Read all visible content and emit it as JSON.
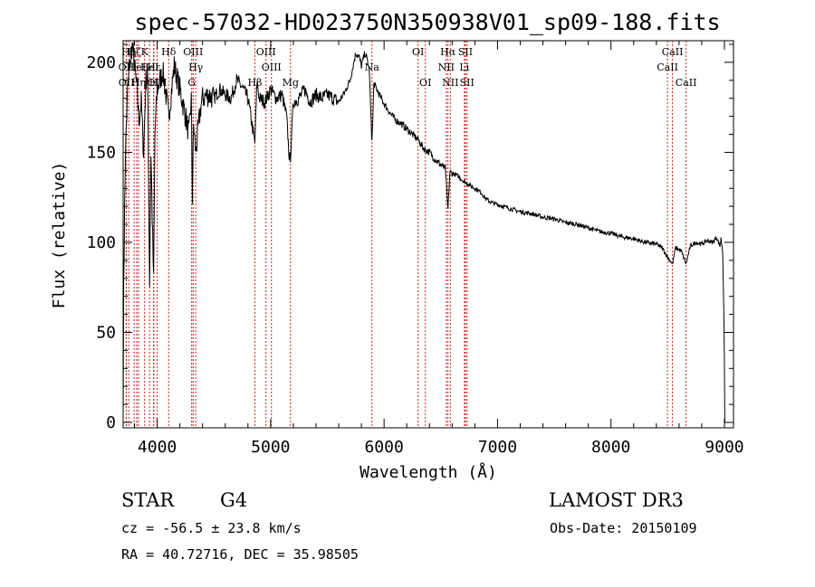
{
  "chart_data": {
    "type": "line",
    "title": "spec-57032-HD023750N350938V01_sp09-188.fits",
    "xlabel": "Wavelength (Å)",
    "ylabel": "Flux (relative)",
    "xlim": [
      3700,
      9080
    ],
    "ylim": [
      -3,
      212
    ],
    "xticks": [
      4000,
      5000,
      6000,
      7000,
      8000,
      9000
    ],
    "yticks": [
      0,
      50,
      100,
      150,
      200
    ],
    "spectrum_anchors": [
      [
        3700,
        0
      ],
      [
        3705,
        80
      ],
      [
        3720,
        150
      ],
      [
        3740,
        185
      ],
      [
        3760,
        200
      ],
      [
        3780,
        210
      ],
      [
        3800,
        198
      ],
      [
        3820,
        186
      ],
      [
        3840,
        168
      ],
      [
        3860,
        178
      ],
      [
        3880,
        150
      ],
      [
        3900,
        190
      ],
      [
        3915,
        195
      ],
      [
        3933,
        78
      ],
      [
        3945,
        150
      ],
      [
        3968,
        78
      ],
      [
        3980,
        160
      ],
      [
        4000,
        185
      ],
      [
        4050,
        195
      ],
      [
        4101,
        170
      ],
      [
        4150,
        198
      ],
      [
        4200,
        185
      ],
      [
        4250,
        170
      ],
      [
        4280,
        160
      ],
      [
        4300,
        180
      ],
      [
        4310,
        125
      ],
      [
        4320,
        165
      ],
      [
        4340,
        150
      ],
      [
        4383,
        175
      ],
      [
        4400,
        180
      ],
      [
        4450,
        182
      ],
      [
        4500,
        180
      ],
      [
        4550,
        185
      ],
      [
        4600,
        182
      ],
      [
        4650,
        180
      ],
      [
        4700,
        190
      ],
      [
        4750,
        186
      ],
      [
        4800,
        180
      ],
      [
        4861,
        155
      ],
      [
        4880,
        190
      ],
      [
        4900,
        180
      ],
      [
        4950,
        178
      ],
      [
        5000,
        185
      ],
      [
        5050,
        180
      ],
      [
        5100,
        182
      ],
      [
        5140,
        170
      ],
      [
        5167,
        145
      ],
      [
        5175,
        148
      ],
      [
        5200,
        178
      ],
      [
        5250,
        180
      ],
      [
        5300,
        185
      ],
      [
        5350,
        178
      ],
      [
        5400,
        182
      ],
      [
        5450,
        180
      ],
      [
        5500,
        182
      ],
      [
        5550,
        180
      ],
      [
        5600,
        178
      ],
      [
        5650,
        183
      ],
      [
        5700,
        190
      ],
      [
        5750,
        205
      ],
      [
        5780,
        203
      ],
      [
        5800,
        198
      ],
      [
        5830,
        205
      ],
      [
        5850,
        202
      ],
      [
        5870,
        195
      ],
      [
        5890,
        158
      ],
      [
        5896,
        160
      ],
      [
        5910,
        188
      ],
      [
        5950,
        183
      ],
      [
        6000,
        177
      ],
      [
        6050,
        172
      ],
      [
        6100,
        168
      ],
      [
        6150,
        166
      ],
      [
        6200,
        163
      ],
      [
        6250,
        160
      ],
      [
        6300,
        157
      ],
      [
        6350,
        152
      ],
      [
        6400,
        150
      ],
      [
        6450,
        146
      ],
      [
        6500,
        143
      ],
      [
        6540,
        141
      ],
      [
        6563,
        118
      ],
      [
        6580,
        139
      ],
      [
        6650,
        137
      ],
      [
        6700,
        134
      ],
      [
        6750,
        132
      ],
      [
        6800,
        130
      ],
      [
        6850,
        128
      ],
      [
        6900,
        124
      ],
      [
        6950,
        122
      ],
      [
        7000,
        121
      ],
      [
        7100,
        119
      ],
      [
        7200,
        117
      ],
      [
        7300,
        116
      ],
      [
        7400,
        114
      ],
      [
        7500,
        113
      ],
      [
        7600,
        111
      ],
      [
        7700,
        110
      ],
      [
        7800,
        108
      ],
      [
        7900,
        106
      ],
      [
        8000,
        105
      ],
      [
        8100,
        103
      ],
      [
        8200,
        102
      ],
      [
        8300,
        100
      ],
      [
        8400,
        99
      ],
      [
        8450,
        97
      ],
      [
        8498,
        92
      ],
      [
        8542,
        88
      ],
      [
        8570,
        97
      ],
      [
        8600,
        96
      ],
      [
        8620,
        95
      ],
      [
        8662,
        88
      ],
      [
        8700,
        98
      ],
      [
        8750,
        100
      ],
      [
        8800,
        99
      ],
      [
        8850,
        101
      ],
      [
        8900,
        100
      ],
      [
        8930,
        103
      ],
      [
        8960,
        98
      ],
      [
        8970,
        102
      ],
      [
        8985,
        95
      ],
      [
        8995,
        60
      ],
      [
        9000,
        30
      ],
      [
        9003,
        0
      ]
    ],
    "lines": [
      {
        "label": "Hη",
        "x": 3750,
        "row": 1
      },
      {
        "label": "OII",
        "x": 3727,
        "row": 2
      },
      {
        "label": "OII",
        "x": 3729,
        "row": 3
      },
      {
        "label": "Hζ",
        "x": 3797,
        "row": 1
      },
      {
        "label": "HeI",
        "x": 3820,
        "row": 2
      },
      {
        "label": "Hη",
        "x": 3835,
        "row": 3
      },
      {
        "label": "K",
        "x": 3889,
        "row": 1
      },
      {
        "label": "HeI",
        "x": 3933,
        "row": 2
      },
      {
        "label": "H",
        "x": 3968,
        "row": 3
      },
      {
        "label": "Hε",
        "x": 3970,
        "row": 2
      },
      {
        "label": "Hδ",
        "x": 4101,
        "row": 1
      },
      {
        "label": "OIII",
        "x": 4000,
        "row": 3
      },
      {
        "label": "OIII",
        "x": 4317,
        "row": 1
      },
      {
        "label": "Hγ",
        "x": 4340,
        "row": 2
      },
      {
        "label": "G",
        "x": 4304,
        "row": 3
      },
      {
        "label": "OIII",
        "x": 4959,
        "row": 1
      },
      {
        "label": "OIII",
        "x": 5007,
        "row": 2
      },
      {
        "label": "Hβ",
        "x": 4861,
        "row": 3
      },
      {
        "label": "Mg",
        "x": 5175,
        "row": 3
      },
      {
        "label": "Na",
        "x": 5893,
        "row": 2
      },
      {
        "label": "OI",
        "x": 6300,
        "row": 1
      },
      {
        "label": "OI",
        "x": 6364,
        "row": 3
      },
      {
        "label": "Hα",
        "x": 6563,
        "row": 1
      },
      {
        "label": "NII",
        "x": 6548,
        "row": 2
      },
      {
        "label": "NII",
        "x": 6584,
        "row": 3
      },
      {
        "label": "SII",
        "x": 6717,
        "row": 1
      },
      {
        "label": "Li",
        "x": 6708,
        "row": 2
      },
      {
        "label": "SII",
        "x": 6731,
        "row": 3
      },
      {
        "label": "CaII",
        "x": 8542,
        "row": 1
      },
      {
        "label": "CaII",
        "x": 8498,
        "row": 2
      },
      {
        "label": "CaII",
        "x": 8662,
        "row": 3
      }
    ],
    "line_color": "#cc2222"
  },
  "info": {
    "class": "STAR",
    "subclass": "G4",
    "survey": "LAMOST DR3",
    "cz": "cz = -56.5 ± 23.8 km/s",
    "obs_date": "Obs-Date: 20150109",
    "coords": "RA =  40.72716, DEC =  35.98505"
  }
}
